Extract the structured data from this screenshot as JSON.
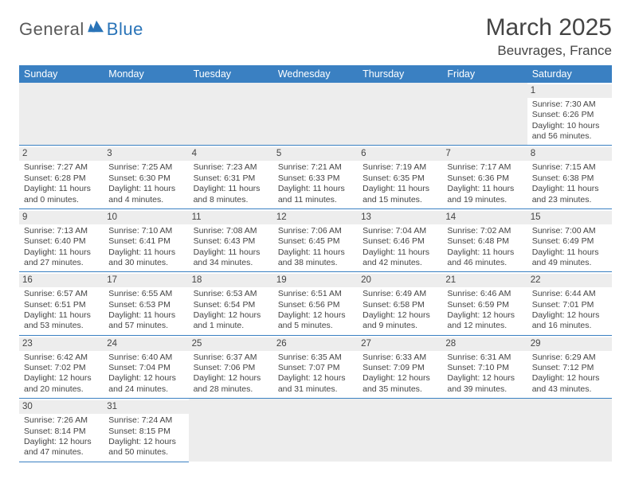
{
  "logo": {
    "part1": "General",
    "part2": "Blue"
  },
  "title": "March 2025",
  "location": "Beuvrages, France",
  "colors": {
    "header_bg": "#3a80c2",
    "header_fg": "#ffffff",
    "daynum_bg": "#ededed",
    "border": "#3a80c2",
    "logo_gray": "#5a5a5a",
    "logo_blue": "#2a74b8"
  },
  "weekdays": [
    "Sunday",
    "Monday",
    "Tuesday",
    "Wednesday",
    "Thursday",
    "Friday",
    "Saturday"
  ],
  "weeks": [
    [
      null,
      null,
      null,
      null,
      null,
      null,
      {
        "n": "1",
        "sr": "Sunrise: 7:30 AM",
        "ss": "Sunset: 6:26 PM",
        "dl": "Daylight: 10 hours and 56 minutes."
      }
    ],
    [
      {
        "n": "2",
        "sr": "Sunrise: 7:27 AM",
        "ss": "Sunset: 6:28 PM",
        "dl": "Daylight: 11 hours and 0 minutes."
      },
      {
        "n": "3",
        "sr": "Sunrise: 7:25 AM",
        "ss": "Sunset: 6:30 PM",
        "dl": "Daylight: 11 hours and 4 minutes."
      },
      {
        "n": "4",
        "sr": "Sunrise: 7:23 AM",
        "ss": "Sunset: 6:31 PM",
        "dl": "Daylight: 11 hours and 8 minutes."
      },
      {
        "n": "5",
        "sr": "Sunrise: 7:21 AM",
        "ss": "Sunset: 6:33 PM",
        "dl": "Daylight: 11 hours and 11 minutes."
      },
      {
        "n": "6",
        "sr": "Sunrise: 7:19 AM",
        "ss": "Sunset: 6:35 PM",
        "dl": "Daylight: 11 hours and 15 minutes."
      },
      {
        "n": "7",
        "sr": "Sunrise: 7:17 AM",
        "ss": "Sunset: 6:36 PM",
        "dl": "Daylight: 11 hours and 19 minutes."
      },
      {
        "n": "8",
        "sr": "Sunrise: 7:15 AM",
        "ss": "Sunset: 6:38 PM",
        "dl": "Daylight: 11 hours and 23 minutes."
      }
    ],
    [
      {
        "n": "9",
        "sr": "Sunrise: 7:13 AM",
        "ss": "Sunset: 6:40 PM",
        "dl": "Daylight: 11 hours and 27 minutes."
      },
      {
        "n": "10",
        "sr": "Sunrise: 7:10 AM",
        "ss": "Sunset: 6:41 PM",
        "dl": "Daylight: 11 hours and 30 minutes."
      },
      {
        "n": "11",
        "sr": "Sunrise: 7:08 AM",
        "ss": "Sunset: 6:43 PM",
        "dl": "Daylight: 11 hours and 34 minutes."
      },
      {
        "n": "12",
        "sr": "Sunrise: 7:06 AM",
        "ss": "Sunset: 6:45 PM",
        "dl": "Daylight: 11 hours and 38 minutes."
      },
      {
        "n": "13",
        "sr": "Sunrise: 7:04 AM",
        "ss": "Sunset: 6:46 PM",
        "dl": "Daylight: 11 hours and 42 minutes."
      },
      {
        "n": "14",
        "sr": "Sunrise: 7:02 AM",
        "ss": "Sunset: 6:48 PM",
        "dl": "Daylight: 11 hours and 46 minutes."
      },
      {
        "n": "15",
        "sr": "Sunrise: 7:00 AM",
        "ss": "Sunset: 6:49 PM",
        "dl": "Daylight: 11 hours and 49 minutes."
      }
    ],
    [
      {
        "n": "16",
        "sr": "Sunrise: 6:57 AM",
        "ss": "Sunset: 6:51 PM",
        "dl": "Daylight: 11 hours and 53 minutes."
      },
      {
        "n": "17",
        "sr": "Sunrise: 6:55 AM",
        "ss": "Sunset: 6:53 PM",
        "dl": "Daylight: 11 hours and 57 minutes."
      },
      {
        "n": "18",
        "sr": "Sunrise: 6:53 AM",
        "ss": "Sunset: 6:54 PM",
        "dl": "Daylight: 12 hours and 1 minute."
      },
      {
        "n": "19",
        "sr": "Sunrise: 6:51 AM",
        "ss": "Sunset: 6:56 PM",
        "dl": "Daylight: 12 hours and 5 minutes."
      },
      {
        "n": "20",
        "sr": "Sunrise: 6:49 AM",
        "ss": "Sunset: 6:58 PM",
        "dl": "Daylight: 12 hours and 9 minutes."
      },
      {
        "n": "21",
        "sr": "Sunrise: 6:46 AM",
        "ss": "Sunset: 6:59 PM",
        "dl": "Daylight: 12 hours and 12 minutes."
      },
      {
        "n": "22",
        "sr": "Sunrise: 6:44 AM",
        "ss": "Sunset: 7:01 PM",
        "dl": "Daylight: 12 hours and 16 minutes."
      }
    ],
    [
      {
        "n": "23",
        "sr": "Sunrise: 6:42 AM",
        "ss": "Sunset: 7:02 PM",
        "dl": "Daylight: 12 hours and 20 minutes."
      },
      {
        "n": "24",
        "sr": "Sunrise: 6:40 AM",
        "ss": "Sunset: 7:04 PM",
        "dl": "Daylight: 12 hours and 24 minutes."
      },
      {
        "n": "25",
        "sr": "Sunrise: 6:37 AM",
        "ss": "Sunset: 7:06 PM",
        "dl": "Daylight: 12 hours and 28 minutes."
      },
      {
        "n": "26",
        "sr": "Sunrise: 6:35 AM",
        "ss": "Sunset: 7:07 PM",
        "dl": "Daylight: 12 hours and 31 minutes."
      },
      {
        "n": "27",
        "sr": "Sunrise: 6:33 AM",
        "ss": "Sunset: 7:09 PM",
        "dl": "Daylight: 12 hours and 35 minutes."
      },
      {
        "n": "28",
        "sr": "Sunrise: 6:31 AM",
        "ss": "Sunset: 7:10 PM",
        "dl": "Daylight: 12 hours and 39 minutes."
      },
      {
        "n": "29",
        "sr": "Sunrise: 6:29 AM",
        "ss": "Sunset: 7:12 PM",
        "dl": "Daylight: 12 hours and 43 minutes."
      }
    ],
    [
      {
        "n": "30",
        "sr": "Sunrise: 7:26 AM",
        "ss": "Sunset: 8:14 PM",
        "dl": "Daylight: 12 hours and 47 minutes."
      },
      {
        "n": "31",
        "sr": "Sunrise: 7:24 AM",
        "ss": "Sunset: 8:15 PM",
        "dl": "Daylight: 12 hours and 50 minutes."
      },
      null,
      null,
      null,
      null,
      null
    ]
  ]
}
